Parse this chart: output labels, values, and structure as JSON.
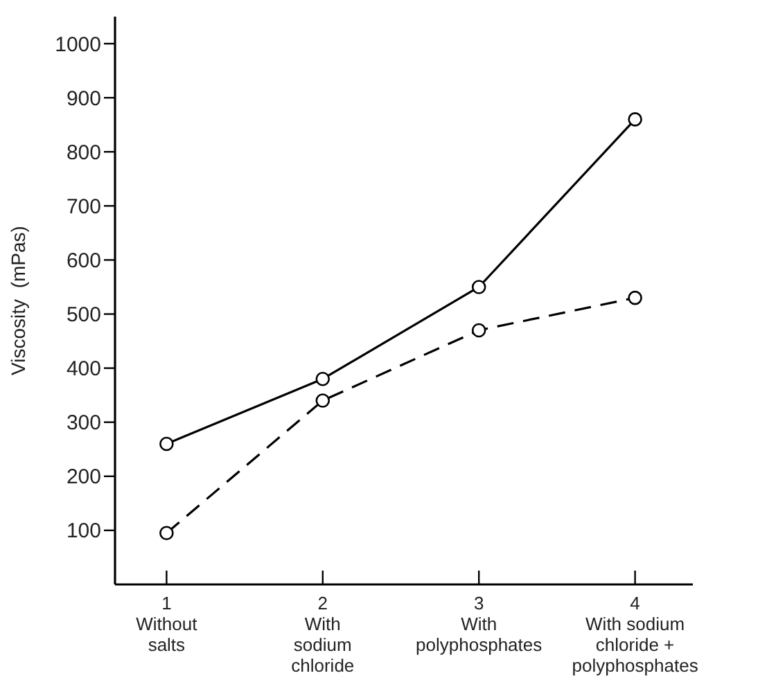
{
  "chart_data": {
    "type": "line",
    "ylabel": "Viscosity  (mPas)",
    "categories": [
      "1\nWithout\nsalts",
      "2\nWith\nsodium\nchloride",
      "3\nWith\npolyphosphates",
      "4\nWith sodium\nchloride +\npolyphosphates"
    ],
    "series": [
      {
        "color": "#000000",
        "values": [
          260,
          380,
          550,
          860
        ],
        "line_style": "solid"
      },
      {
        "color": "#000000",
        "values": [
          95,
          340,
          470,
          530
        ],
        "line_style": "dashed"
      }
    ],
    "ylim": [
      0,
      1050
    ],
    "yticks": [
      100,
      200,
      300,
      400,
      500,
      600,
      700,
      800,
      900,
      1000
    ],
    "marker": "circle"
  }
}
